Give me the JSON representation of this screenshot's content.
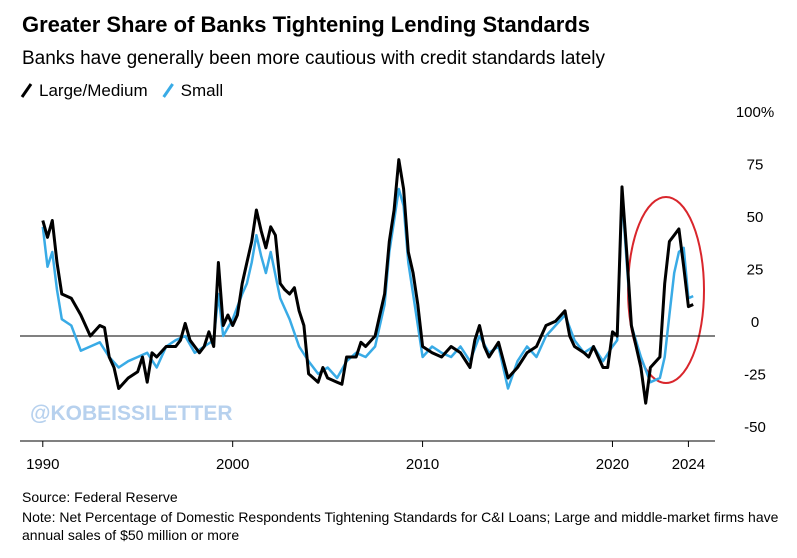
{
  "chart_data": {
    "type": "line",
    "title": "Greater Share of Banks Tightening Lending Standards",
    "subtitle": "Banks have generally been more cautious with credit standards lately",
    "source": "Source: Federal Reserve",
    "note": "Note: Net Percentage of Domestic Respondents Tightening Standards for C&I Loans; Large and middle-market firms have annual sales of $50 million or more",
    "annotation": "@KOBEISSILETTER",
    "xlim": [
      1988.8,
      2025.4
    ],
    "xticks": [
      1990,
      2000,
      2010,
      2020,
      2024
    ],
    "ylim": [
      -50,
      100
    ],
    "yticks": [
      {
        "value": 100,
        "label": "100%"
      },
      75,
      50,
      25,
      0,
      -25,
      -50
    ],
    "grid": false,
    "zeroline": true,
    "legend": "top-left",
    "series": [
      {
        "name": "Large/Medium",
        "color": "#000000",
        "x": [
          1990.0,
          1990.25,
          1990.5,
          1990.75,
          1991.0,
          1991.5,
          1992.0,
          1992.5,
          1993.0,
          1993.25,
          1993.5,
          1993.75,
          1994.0,
          1994.5,
          1995.0,
          1995.25,
          1995.5,
          1995.75,
          1996.0,
          1996.5,
          1997.0,
          1997.25,
          1997.5,
          1997.75,
          1998.0,
          1998.25,
          1998.5,
          1998.75,
          1999.0,
          1999.25,
          1999.5,
          1999.75,
          2000.0,
          2000.25,
          2000.5,
          2000.75,
          2001.0,
          2001.25,
          2001.5,
          2001.75,
          2002.0,
          2002.25,
          2002.5,
          2002.75,
          2003.0,
          2003.25,
          2003.5,
          2003.75,
          2004.0,
          2004.5,
          2004.75,
          2005.0,
          2005.5,
          2005.75,
          2006.0,
          2006.5,
          2006.75,
          2007.0,
          2007.5,
          2007.75,
          2008.0,
          2008.25,
          2008.5,
          2008.75,
          2009.0,
          2009.25,
          2009.5,
          2009.75,
          2010.0,
          2010.5,
          2011.0,
          2011.5,
          2012.0,
          2012.5,
          2012.75,
          2013.0,
          2013.25,
          2013.5,
          2014.0,
          2014.5,
          2015.0,
          2015.5,
          2016.0,
          2016.5,
          2017.0,
          2017.5,
          2017.75,
          2018.0,
          2018.5,
          2018.75,
          2019.0,
          2019.25,
          2019.5,
          2019.75,
          2020.0,
          2020.25,
          2020.5,
          2020.75,
          2021.0,
          2021.5,
          2021.75,
          2022.0,
          2022.5,
          2022.75,
          2023.0,
          2023.25,
          2023.5,
          2023.75,
          2024.0,
          2024.25
        ],
        "values": [
          55,
          47,
          55,
          35,
          20,
          18,
          10,
          0,
          5,
          4,
          -10,
          -15,
          -25,
          -20,
          -17,
          -10,
          -22,
          -8,
          -10,
          -5,
          -5,
          -2,
          6,
          -2,
          -5,
          -8,
          -5,
          2,
          -5,
          35,
          5,
          10,
          5,
          10,
          25,
          35,
          45,
          60,
          50,
          42,
          52,
          48,
          25,
          22,
          20,
          23,
          12,
          5,
          -18,
          -22,
          -15,
          -20,
          -22,
          -23,
          -10,
          -10,
          -3,
          -5,
          0,
          10,
          20,
          45,
          60,
          84,
          70,
          40,
          30,
          15,
          -5,
          -8,
          -10,
          -5,
          -8,
          -15,
          -2,
          5,
          -5,
          -10,
          -3,
          -20,
          -15,
          -8,
          -5,
          5,
          7,
          12,
          0,
          -5,
          -8,
          -10,
          -5,
          -10,
          -15,
          -15,
          2,
          0,
          71,
          40,
          5,
          -15,
          -32,
          -15,
          -10,
          25,
          45,
          48,
          51,
          33,
          14,
          15
        ]
      },
      {
        "name": "Small",
        "color": "#39abe6",
        "x": [
          1990.0,
          1990.25,
          1990.5,
          1990.75,
          1991.0,
          1991.5,
          1992.0,
          1992.5,
          1993.0,
          1993.5,
          1994.0,
          1994.5,
          1995.0,
          1995.5,
          1996.0,
          1996.5,
          1997.0,
          1997.5,
          1998.0,
          1998.5,
          1999.0,
          1999.25,
          1999.5,
          2000.0,
          2000.5,
          2000.75,
          2001.0,
          2001.25,
          2001.5,
          2001.75,
          2002.0,
          2002.5,
          2003.0,
          2003.5,
          2004.0,
          2004.5,
          2005.0,
          2005.5,
          2006.0,
          2006.5,
          2007.0,
          2007.5,
          2008.0,
          2008.25,
          2008.5,
          2008.75,
          2009.0,
          2009.25,
          2009.5,
          2010.0,
          2010.5,
          2011.0,
          2011.5,
          2012.0,
          2012.5,
          2013.0,
          2013.5,
          2014.0,
          2014.5,
          2015.0,
          2015.5,
          2016.0,
          2016.5,
          2017.0,
          2017.5,
          2018.0,
          2018.5,
          2019.0,
          2019.5,
          2020.0,
          2020.25,
          2020.5,
          2020.75,
          2021.0,
          2021.5,
          2022.0,
          2022.5,
          2022.75,
          2023.0,
          2023.25,
          2023.5,
          2023.75,
          2024.0,
          2024.25
        ],
        "values": [
          52,
          33,
          40,
          22,
          8,
          5,
          -7,
          -5,
          -3,
          -10,
          -15,
          -12,
          -10,
          -8,
          -15,
          -5,
          -2,
          0,
          -8,
          -5,
          -2,
          20,
          0,
          8,
          20,
          25,
          35,
          48,
          38,
          30,
          40,
          18,
          8,
          -5,
          -12,
          -18,
          -15,
          -20,
          -12,
          -8,
          -10,
          -5,
          15,
          40,
          55,
          70,
          62,
          35,
          20,
          -10,
          -5,
          -8,
          -10,
          -5,
          -12,
          0,
          -8,
          -5,
          -25,
          -12,
          -5,
          -10,
          0,
          5,
          10,
          -2,
          -8,
          -5,
          -12,
          -5,
          -2,
          67,
          35,
          5,
          -10,
          -22,
          -20,
          -10,
          10,
          30,
          40,
          42,
          18,
          19
        ]
      }
    ]
  }
}
